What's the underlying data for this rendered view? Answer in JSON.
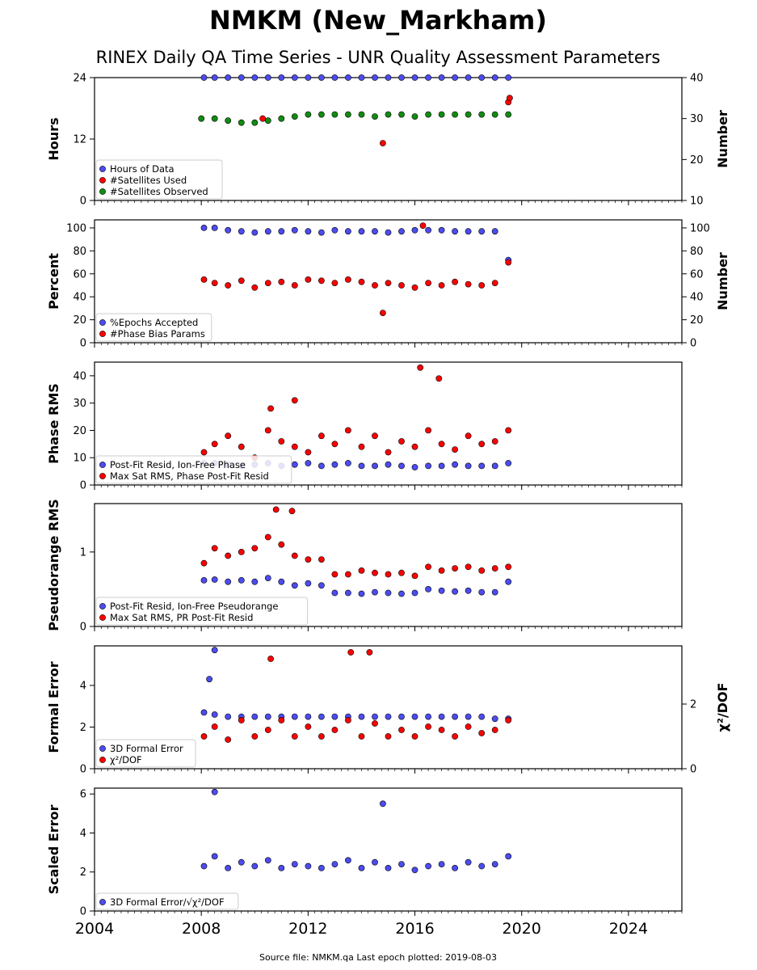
{
  "title": "NMKM (New_Markham)",
  "subtitle": "RINEX Daily QA Time Series - UNR Quality Assessment Parameters",
  "footer": "Source file: NMKM.qa Last epoch plotted: 2019-08-03",
  "colors": {
    "blue": "#4c4cf0",
    "red": "#ff0000",
    "green": "#118c11",
    "edge": "#000000"
  },
  "chart_data": [
    {
      "type": "scatter",
      "ylabel": "Hours",
      "ylim": [
        0,
        24
      ],
      "yticks": [
        0,
        12,
        24
      ],
      "ylabel_right": "Number",
      "ylim_right": [
        10,
        40
      ],
      "yticks_right": [
        10,
        20,
        30,
        40
      ],
      "xlim": [
        2004,
        2026
      ],
      "xticks": [
        2004,
        2008,
        2012,
        2016,
        2020,
        2024
      ],
      "legend": "lower-left",
      "series": [
        {
          "name": "Hours of Data",
          "color": "blue",
          "axis": "left",
          "x": [
            2008.1,
            2008.5,
            2009.0,
            2009.5,
            2010.0,
            2010.5,
            2011.0,
            2011.5,
            2012.0,
            2012.5,
            2013.0,
            2013.5,
            2014.0,
            2014.5,
            2015.0,
            2015.5,
            2016.0,
            2016.5,
            2017.0,
            2017.5,
            2018.0,
            2018.5,
            2019.0,
            2019.5
          ],
          "y": [
            24,
            24,
            24,
            24,
            24,
            24,
            24,
            24,
            24,
            24,
            24,
            24,
            24,
            24,
            24,
            24,
            24,
            24,
            24,
            24,
            24,
            24,
            24,
            24
          ]
        },
        {
          "name": "#Satellites Used",
          "color": "red",
          "axis": "right",
          "x": [
            2010.3,
            2014.8,
            2019.5,
            2019.55
          ],
          "y": [
            30,
            24,
            34,
            35
          ]
        },
        {
          "name": "#Satellites Observed",
          "color": "green",
          "axis": "right",
          "x": [
            2008.0,
            2008.5,
            2009.0,
            2009.5,
            2010.0,
            2010.5,
            2011.0,
            2011.5,
            2012.0,
            2012.5,
            2013.0,
            2013.5,
            2014.0,
            2014.5,
            2015.0,
            2015.5,
            2016.0,
            2016.5,
            2017.0,
            2017.5,
            2018.0,
            2018.5,
            2019.0,
            2019.5
          ],
          "y": [
            30,
            30,
            29.5,
            29,
            29,
            29.5,
            30,
            30.5,
            31,
            31,
            31,
            31,
            31,
            30.5,
            31,
            31,
            30.5,
            31,
            31,
            31,
            31,
            31,
            31,
            31
          ]
        }
      ]
    },
    {
      "type": "scatter",
      "ylabel": "Percent",
      "ylim": [
        0,
        107
      ],
      "yticks": [
        0,
        20,
        40,
        60,
        80,
        100
      ],
      "ylabel_right": "Number",
      "ylim_right": [
        0,
        107
      ],
      "yticks_right": [
        0,
        20,
        40,
        60,
        80,
        100
      ],
      "xlim": [
        2004,
        2026
      ],
      "xticks": [
        2004,
        2008,
        2012,
        2016,
        2020,
        2024
      ],
      "legend": "lower-left",
      "series": [
        {
          "name": "%Epochs Accepted",
          "color": "blue",
          "axis": "left",
          "x": [
            2008.1,
            2008.5,
            2009.0,
            2009.5,
            2010.0,
            2010.5,
            2011.0,
            2011.5,
            2012.0,
            2012.5,
            2013.0,
            2013.5,
            2014.0,
            2014.5,
            2015.0,
            2015.5,
            2016.0,
            2016.5,
            2017.0,
            2017.5,
            2018.0,
            2018.5,
            2019.0,
            2019.5
          ],
          "y": [
            100,
            100,
            98,
            97,
            96,
            97,
            97,
            98,
            97,
            96,
            98,
            97,
            97,
            97,
            96,
            97,
            98,
            98,
            98,
            97,
            97,
            97,
            97,
            72
          ]
        },
        {
          "name": "#Phase Bias Params",
          "color": "red",
          "axis": "right",
          "x": [
            2008.1,
            2008.5,
            2009.0,
            2009.5,
            2010.0,
            2010.5,
            2011.0,
            2011.5,
            2012.0,
            2012.5,
            2013.0,
            2013.5,
            2014.0,
            2014.5,
            2015.0,
            2015.5,
            2016.0,
            2016.5,
            2017.0,
            2017.5,
            2018.0,
            2018.5,
            2019.0,
            2019.5,
            2014.8,
            2016.3
          ],
          "y": [
            55,
            52,
            50,
            54,
            48,
            52,
            53,
            50,
            55,
            54,
            52,
            55,
            53,
            50,
            52,
            50,
            48,
            52,
            50,
            53,
            51,
            50,
            52,
            70,
            26,
            102
          ]
        }
      ]
    },
    {
      "type": "scatter",
      "ylabel": "Phase RMS",
      "ylim": [
        0,
        45
      ],
      "yticks": [
        0,
        10,
        20,
        30,
        40
      ],
      "xlim": [
        2004,
        2026
      ],
      "xticks": [
        2004,
        2008,
        2012,
        2016,
        2020,
        2024
      ],
      "legend": "lower-left",
      "series": [
        {
          "name": "Post-Fit Resid, Ion-Free Phase",
          "color": "blue",
          "axis": "left",
          "x": [
            2008.1,
            2008.5,
            2009.0,
            2009.5,
            2010.0,
            2010.5,
            2011.0,
            2011.5,
            2012.0,
            2012.5,
            2013.0,
            2013.5,
            2014.0,
            2014.5,
            2015.0,
            2015.5,
            2016.0,
            2016.5,
            2017.0,
            2017.5,
            2018.0,
            2018.5,
            2019.0,
            2019.5
          ],
          "y": [
            8,
            8,
            7.5,
            7,
            7.5,
            8,
            7,
            7.5,
            8,
            7,
            7.5,
            8,
            7,
            7,
            7.5,
            7,
            6.5,
            7,
            7,
            7.5,
            7,
            7,
            7,
            8
          ]
        },
        {
          "name": "Max Sat RMS, Phase Post-Fit Resid",
          "color": "red",
          "axis": "left",
          "x": [
            2008.1,
            2008.5,
            2009.0,
            2009.5,
            2010.0,
            2010.5,
            2011.0,
            2011.5,
            2012.0,
            2012.5,
            2013.0,
            2013.5,
            2014.0,
            2014.5,
            2015.0,
            2015.5,
            2016.0,
            2016.5,
            2017.0,
            2017.5,
            2018.0,
            2018.5,
            2019.0,
            2019.5,
            2016.2,
            2016.9,
            2010.6,
            2011.5
          ],
          "y": [
            12,
            15,
            18,
            14,
            10,
            20,
            16,
            14,
            12,
            18,
            15,
            20,
            14,
            18,
            12,
            16,
            14,
            20,
            15,
            13,
            18,
            15,
            16,
            20,
            43,
            39,
            28,
            31
          ]
        }
      ]
    },
    {
      "type": "scatter",
      "ylabel": "Pseudorange RMS",
      "ylim": [
        0,
        1.65
      ],
      "yticks": [
        0,
        1
      ],
      "xlim": [
        2004,
        2026
      ],
      "xticks": [
        2004,
        2008,
        2012,
        2016,
        2020,
        2024
      ],
      "legend": "lower-left",
      "series": [
        {
          "name": "Post-Fit Resid, Ion-Free Pseudorange",
          "color": "blue",
          "axis": "left",
          "x": [
            2008.1,
            2008.5,
            2009.0,
            2009.5,
            2010.0,
            2010.5,
            2011.0,
            2011.5,
            2012.0,
            2012.5,
            2013.0,
            2013.5,
            2014.0,
            2014.5,
            2015.0,
            2015.5,
            2016.0,
            2016.5,
            2017.0,
            2017.5,
            2018.0,
            2018.5,
            2019.0,
            2019.5
          ],
          "y": [
            0.62,
            0.63,
            0.6,
            0.62,
            0.6,
            0.65,
            0.6,
            0.55,
            0.58,
            0.55,
            0.45,
            0.45,
            0.44,
            0.46,
            0.45,
            0.44,
            0.45,
            0.5,
            0.48,
            0.47,
            0.48,
            0.46,
            0.46,
            0.6
          ]
        },
        {
          "name": "Max Sat RMS, PR Post-Fit Resid",
          "color": "red",
          "axis": "left",
          "x": [
            2008.1,
            2008.5,
            2009.0,
            2009.5,
            2010.0,
            2010.5,
            2011.0,
            2011.5,
            2012.0,
            2012.5,
            2013.0,
            2013.5,
            2014.0,
            2014.5,
            2015.0,
            2015.5,
            2016.0,
            2016.5,
            2017.0,
            2017.5,
            2018.0,
            2018.5,
            2019.0,
            2019.5,
            2010.8,
            2011.4
          ],
          "y": [
            0.85,
            1.05,
            0.95,
            1.0,
            1.05,
            1.2,
            1.1,
            0.95,
            0.9,
            0.9,
            0.7,
            0.7,
            0.75,
            0.72,
            0.7,
            0.72,
            0.68,
            0.8,
            0.75,
            0.78,
            0.8,
            0.75,
            0.78,
            0.8,
            1.57,
            1.55
          ]
        }
      ]
    },
    {
      "type": "scatter",
      "ylabel": "Formal Error",
      "ylim": [
        0,
        5.9
      ],
      "yticks": [
        0,
        2,
        4
      ],
      "ylabel_right": "χ²/DOF",
      "ylim_right": [
        0,
        3.8
      ],
      "yticks_right": [
        0,
        2
      ],
      "xlim": [
        2004,
        2026
      ],
      "xticks": [
        2004,
        2008,
        2012,
        2016,
        2020,
        2024
      ],
      "legend": "lower-left",
      "series": [
        {
          "name": "3D Formal Error",
          "color": "blue",
          "axis": "left",
          "x": [
            2008.1,
            2008.5,
            2009.0,
            2009.5,
            2010.0,
            2010.5,
            2011.0,
            2011.5,
            2012.0,
            2012.5,
            2013.0,
            2013.5,
            2014.0,
            2014.5,
            2015.0,
            2015.5,
            2016.0,
            2016.5,
            2017.0,
            2017.5,
            2018.0,
            2018.5,
            2019.0,
            2019.5,
            2008.5,
            2008.3
          ],
          "y": [
            2.7,
            2.6,
            2.5,
            2.5,
            2.5,
            2.5,
            2.5,
            2.5,
            2.5,
            2.5,
            2.5,
            2.5,
            2.5,
            2.5,
            2.5,
            2.5,
            2.5,
            2.5,
            2.5,
            2.5,
            2.5,
            2.5,
            2.4,
            2.4,
            5.7,
            4.3
          ]
        },
        {
          "name": "χ²/DOF",
          "color": "red",
          "axis": "right",
          "x": [
            2008.1,
            2008.5,
            2009.0,
            2009.5,
            2010.0,
            2010.5,
            2011.0,
            2011.5,
            2012.0,
            2012.5,
            2013.0,
            2013.5,
            2014.0,
            2014.5,
            2015.0,
            2015.5,
            2016.0,
            2016.5,
            2017.0,
            2017.5,
            2018.0,
            2018.5,
            2019.0,
            2019.5,
            2013.6,
            2014.3,
            2010.6
          ],
          "y": [
            1.0,
            1.3,
            0.9,
            1.5,
            1.0,
            1.2,
            1.5,
            1.0,
            1.3,
            1.0,
            1.2,
            1.5,
            1.0,
            1.4,
            1.0,
            1.2,
            1.0,
            1.3,
            1.2,
            1.0,
            1.3,
            1.1,
            1.2,
            1.5,
            3.6,
            3.6,
            3.4
          ]
        }
      ]
    },
    {
      "type": "scatter",
      "ylabel": "Scaled Error",
      "ylim": [
        0,
        6.3
      ],
      "yticks": [
        0,
        2,
        4,
        6
      ],
      "xlim": [
        2004,
        2026
      ],
      "xticks": [
        2004,
        2008,
        2012,
        2016,
        2020,
        2024
      ],
      "legend": "lower-left",
      "series": [
        {
          "name": "3D Formal Error/√χ²/DOF",
          "color": "blue",
          "axis": "left",
          "x": [
            2008.1,
            2008.5,
            2009.0,
            2009.5,
            2010.0,
            2010.5,
            2011.0,
            2011.5,
            2012.0,
            2012.5,
            2013.0,
            2013.5,
            2014.0,
            2014.5,
            2015.0,
            2015.5,
            2016.0,
            2016.5,
            2017.0,
            2017.5,
            2018.0,
            2018.5,
            2019.0,
            2019.5,
            2008.5,
            2014.8
          ],
          "y": [
            2.3,
            2.8,
            2.2,
            2.5,
            2.3,
            2.6,
            2.2,
            2.4,
            2.3,
            2.2,
            2.4,
            2.6,
            2.2,
            2.5,
            2.2,
            2.4,
            2.1,
            2.3,
            2.4,
            2.2,
            2.5,
            2.3,
            2.4,
            2.8,
            6.1,
            5.5
          ]
        }
      ]
    }
  ]
}
